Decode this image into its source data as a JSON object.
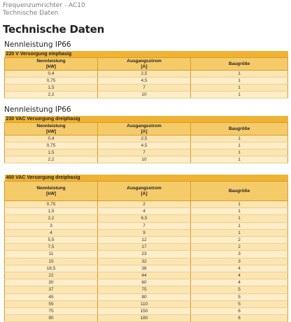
{
  "breadcrumb": {
    "line1": "Frequenzumrichter - AC10",
    "line2": "Technische Daten"
  },
  "page_title": "Technische Daten",
  "section1": {
    "heading": "Nennleistung IP66",
    "caption": "220 V Versorgung einphasig",
    "headers": [
      "Nennleistung\n[kW]",
      "Ausgangsstrom\n[A]",
      "Baugröße"
    ],
    "rows": [
      [
        "0,4",
        "2,5",
        "1"
      ],
      [
        "0,75",
        "4,5",
        "1"
      ],
      [
        "1,5",
        "7",
        "1"
      ],
      [
        "2,2",
        "10",
        "1"
      ]
    ]
  },
  "section2": {
    "heading": "Nennleistung IP66",
    "caption": "230 VAC Versorgung dreiphasig",
    "headers": [
      "Nennleistung\n[kW]",
      "Ausgangsstrom\n[A]",
      "Baugröße"
    ],
    "rows": [
      [
        "0,4",
        "2,5",
        "1"
      ],
      [
        "0,75",
        "4,5",
        "1"
      ],
      [
        "1,5",
        "7",
        "1"
      ],
      [
        "2,2",
        "10",
        "1"
      ]
    ]
  },
  "section3": {
    "caption": "400 VAC Versorgung dreiphasig",
    "headers": [
      "Nennleistung\n[kW]",
      "Ausgangsstrom\n[A]",
      "Baugröße"
    ],
    "rows": [
      [
        "0,75",
        "2",
        "1"
      ],
      [
        "1,5",
        "4",
        "1"
      ],
      [
        "2,2",
        "6,5",
        "1"
      ],
      [
        "3",
        "7",
        "1"
      ],
      [
        "4",
        "9",
        "1"
      ],
      [
        "5,5",
        "12",
        "2"
      ],
      [
        "7,5",
        "17",
        "2"
      ],
      [
        "11",
        "23",
        "3"
      ],
      [
        "15",
        "32",
        "3"
      ],
      [
        "18,5",
        "38",
        "4"
      ],
      [
        "22",
        "44",
        "4"
      ],
      [
        "30",
        "60",
        "4"
      ],
      [
        "37",
        "75",
        "5"
      ],
      [
        "45",
        "90",
        "5"
      ],
      [
        "55",
        "110",
        "5"
      ],
      [
        "75",
        "150",
        "6"
      ],
      [
        "90",
        "180",
        "6"
      ]
    ]
  }
}
